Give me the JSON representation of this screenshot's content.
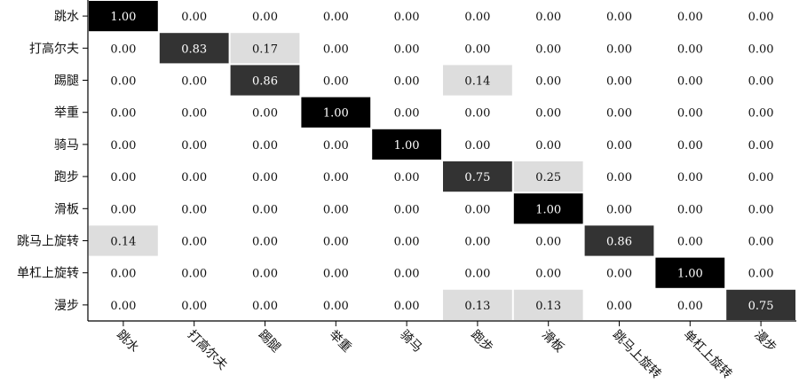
{
  "chart_data": {
    "type": "heatmap",
    "title": "",
    "xlabel": "",
    "ylabel": "",
    "rows": [
      "跳水",
      "打高尔夫",
      "踢腿",
      "举重",
      "骑马",
      "跑步",
      "滑板",
      "跳马上旋转",
      "单杠上旋转",
      "漫步"
    ],
    "columns": [
      "跳水",
      "打高尔夫",
      "踢腿",
      "举重",
      "骑马",
      "跑步",
      "滑板",
      "跳马上旋转",
      "单杠上旋转",
      "漫步"
    ],
    "values": [
      [
        1.0,
        0.0,
        0.0,
        0.0,
        0.0,
        0.0,
        0.0,
        0.0,
        0.0,
        0.0
      ],
      [
        0.0,
        0.83,
        0.17,
        0.0,
        0.0,
        0.0,
        0.0,
        0.0,
        0.0,
        0.0
      ],
      [
        0.0,
        0.0,
        0.86,
        0.0,
        0.0,
        0.14,
        0.0,
        0.0,
        0.0,
        0.0
      ],
      [
        0.0,
        0.0,
        0.0,
        1.0,
        0.0,
        0.0,
        0.0,
        0.0,
        0.0,
        0.0
      ],
      [
        0.0,
        0.0,
        0.0,
        0.0,
        1.0,
        0.0,
        0.0,
        0.0,
        0.0,
        0.0
      ],
      [
        0.0,
        0.0,
        0.0,
        0.0,
        0.0,
        0.75,
        0.25,
        0.0,
        0.0,
        0.0
      ],
      [
        0.0,
        0.0,
        0.0,
        0.0,
        0.0,
        0.0,
        1.0,
        0.0,
        0.0,
        0.0
      ],
      [
        0.14,
        0.0,
        0.0,
        0.0,
        0.0,
        0.0,
        0.0,
        0.86,
        0.0,
        0.0
      ],
      [
        0.0,
        0.0,
        0.0,
        0.0,
        0.0,
        0.0,
        0.0,
        0.0,
        1.0,
        0.0
      ],
      [
        0.0,
        0.0,
        0.0,
        0.0,
        0.0,
        0.13,
        0.13,
        0.0,
        0.0,
        0.75
      ]
    ],
    "value_format": "2-decimal",
    "colormap": "grayscale (0 = white, 1 = black)",
    "colors": {
      "high": "#000000",
      "mid": "#333333",
      "low_nonzero": "#dddddd",
      "zero": "#ffffff",
      "text_dark": "#111111",
      "text_light": "#ffffff"
    },
    "grid": false,
    "legend": "none"
  }
}
